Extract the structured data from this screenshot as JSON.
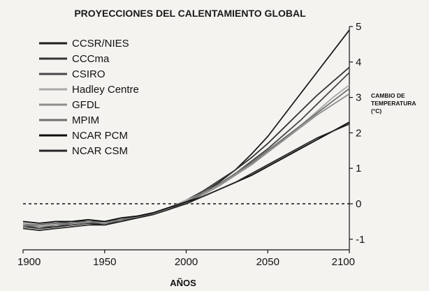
{
  "chart_data": {
    "type": "line",
    "title": "PROYECCIONES DEL CALENTAMIENTO GLOBAL",
    "xlabel": "AÑOS",
    "ylabel_lines": [
      "CAMBIO DE",
      "TEMPERATURA",
      "(°C)"
    ],
    "xlim": [
      1900,
      2100
    ],
    "ylim": [
      -1.3,
      5
    ],
    "xticks": [
      1900,
      1950,
      2000,
      2050,
      2100
    ],
    "yticks": [
      -1,
      0,
      1,
      2,
      3,
      4,
      5
    ],
    "reference_line_y": 0,
    "legend_position": "top-left",
    "grid": false,
    "series": [
      {
        "name": "CCSR/NIES",
        "color": "#1c1c1c",
        "x": [
          1900,
          1910,
          1920,
          1930,
          1940,
          1950,
          1960,
          1970,
          1980,
          1990,
          2000,
          2010,
          2020,
          2030,
          2040,
          2050,
          2060,
          2070,
          2080,
          2090,
          2100
        ],
        "values": [
          -0.6,
          -0.7,
          -0.65,
          -0.6,
          -0.55,
          -0.6,
          -0.5,
          -0.4,
          -0.3,
          -0.15,
          0.05,
          0.3,
          0.6,
          0.95,
          1.4,
          1.9,
          2.5,
          3.1,
          3.7,
          4.3,
          4.9
        ]
      },
      {
        "name": "CCCma",
        "color": "#333333",
        "x": [
          1900,
          1910,
          1920,
          1930,
          1940,
          1950,
          1960,
          1970,
          1980,
          1990,
          2000,
          2010,
          2020,
          2030,
          2040,
          2050,
          2060,
          2070,
          2080,
          2090,
          2100
        ],
        "values": [
          -0.55,
          -0.6,
          -0.55,
          -0.5,
          -0.5,
          -0.55,
          -0.45,
          -0.35,
          -0.25,
          -0.1,
          0.1,
          0.35,
          0.65,
          0.95,
          1.3,
          1.7,
          2.15,
          2.6,
          3.05,
          3.45,
          3.85
        ]
      },
      {
        "name": "CSIRO",
        "color": "#474747",
        "x": [
          1900,
          1910,
          1920,
          1930,
          1940,
          1950,
          1960,
          1970,
          1980,
          1990,
          2000,
          2010,
          2020,
          2030,
          2040,
          2050,
          2060,
          2070,
          2080,
          2090,
          2100
        ],
        "values": [
          -0.65,
          -0.7,
          -0.6,
          -0.6,
          -0.55,
          -0.55,
          -0.5,
          -0.4,
          -0.3,
          -0.15,
          0.05,
          0.3,
          0.55,
          0.85,
          1.2,
          1.55,
          1.95,
          2.35,
          2.8,
          3.25,
          3.7
        ]
      },
      {
        "name": "Hadley Centre",
        "color": "#a8a8a8",
        "x": [
          1900,
          1910,
          1920,
          1930,
          1940,
          1950,
          1960,
          1970,
          1980,
          1990,
          2000,
          2010,
          2020,
          2030,
          2040,
          2050,
          2060,
          2070,
          2080,
          2090,
          2100
        ],
        "values": [
          -0.55,
          -0.6,
          -0.5,
          -0.5,
          -0.45,
          -0.5,
          -0.45,
          -0.35,
          -0.25,
          -0.1,
          0.1,
          0.3,
          0.55,
          0.85,
          1.15,
          1.5,
          1.85,
          2.2,
          2.6,
          3.0,
          3.35
        ]
      },
      {
        "name": "GFDL",
        "color": "#8c8c8c",
        "x": [
          1900,
          1910,
          1920,
          1930,
          1940,
          1950,
          1960,
          1970,
          1980,
          1990,
          2000,
          2010,
          2020,
          2030,
          2040,
          2050,
          2060,
          2070,
          2080,
          2090,
          2100
        ],
        "values": [
          -0.6,
          -0.65,
          -0.6,
          -0.55,
          -0.5,
          -0.55,
          -0.45,
          -0.35,
          -0.3,
          -0.15,
          0.05,
          0.25,
          0.5,
          0.8,
          1.1,
          1.45,
          1.8,
          2.15,
          2.5,
          2.8,
          3.1
        ]
      },
      {
        "name": "MPIM",
        "color": "#6e6e6e",
        "x": [
          1900,
          1910,
          1920,
          1930,
          1940,
          1950,
          1960,
          1970,
          1980,
          1990,
          2000,
          2010,
          2020,
          2030,
          2040,
          2050,
          2060,
          2070,
          2080,
          2090,
          2100
        ],
        "values": [
          -0.6,
          -0.6,
          -0.55,
          -0.55,
          -0.5,
          -0.5,
          -0.45,
          -0.4,
          -0.3,
          -0.15,
          0.05,
          0.3,
          0.55,
          0.85,
          1.15,
          1.5,
          1.85,
          2.2,
          2.55,
          2.9,
          3.25
        ]
      },
      {
        "name": "NCAR PCM",
        "color": "#0d0d0d",
        "x": [
          1900,
          1910,
          1920,
          1930,
          1940,
          1950,
          1960,
          1970,
          1980,
          1990,
          2000,
          2010,
          2020,
          2030,
          2040,
          2050,
          2060,
          2070,
          2080,
          2090,
          2100
        ],
        "values": [
          -0.5,
          -0.55,
          -0.5,
          -0.5,
          -0.45,
          -0.5,
          -0.4,
          -0.35,
          -0.25,
          -0.1,
          0.05,
          0.2,
          0.4,
          0.6,
          0.8,
          1.05,
          1.3,
          1.55,
          1.8,
          2.05,
          2.3
        ]
      },
      {
        "name": "NCAR CSM",
        "color": "#262626",
        "x": [
          1900,
          1910,
          1920,
          1930,
          1940,
          1950,
          1960,
          1970,
          1980,
          1990,
          2000,
          2010,
          2020,
          2030,
          2040,
          2050,
          2060,
          2070,
          2080,
          2090,
          2100
        ],
        "values": [
          -0.7,
          -0.75,
          -0.7,
          -0.65,
          -0.6,
          -0.6,
          -0.5,
          -0.4,
          -0.3,
          -0.15,
          0.0,
          0.2,
          0.4,
          0.6,
          0.85,
          1.1,
          1.35,
          1.6,
          1.85,
          2.05,
          2.25
        ]
      }
    ]
  }
}
